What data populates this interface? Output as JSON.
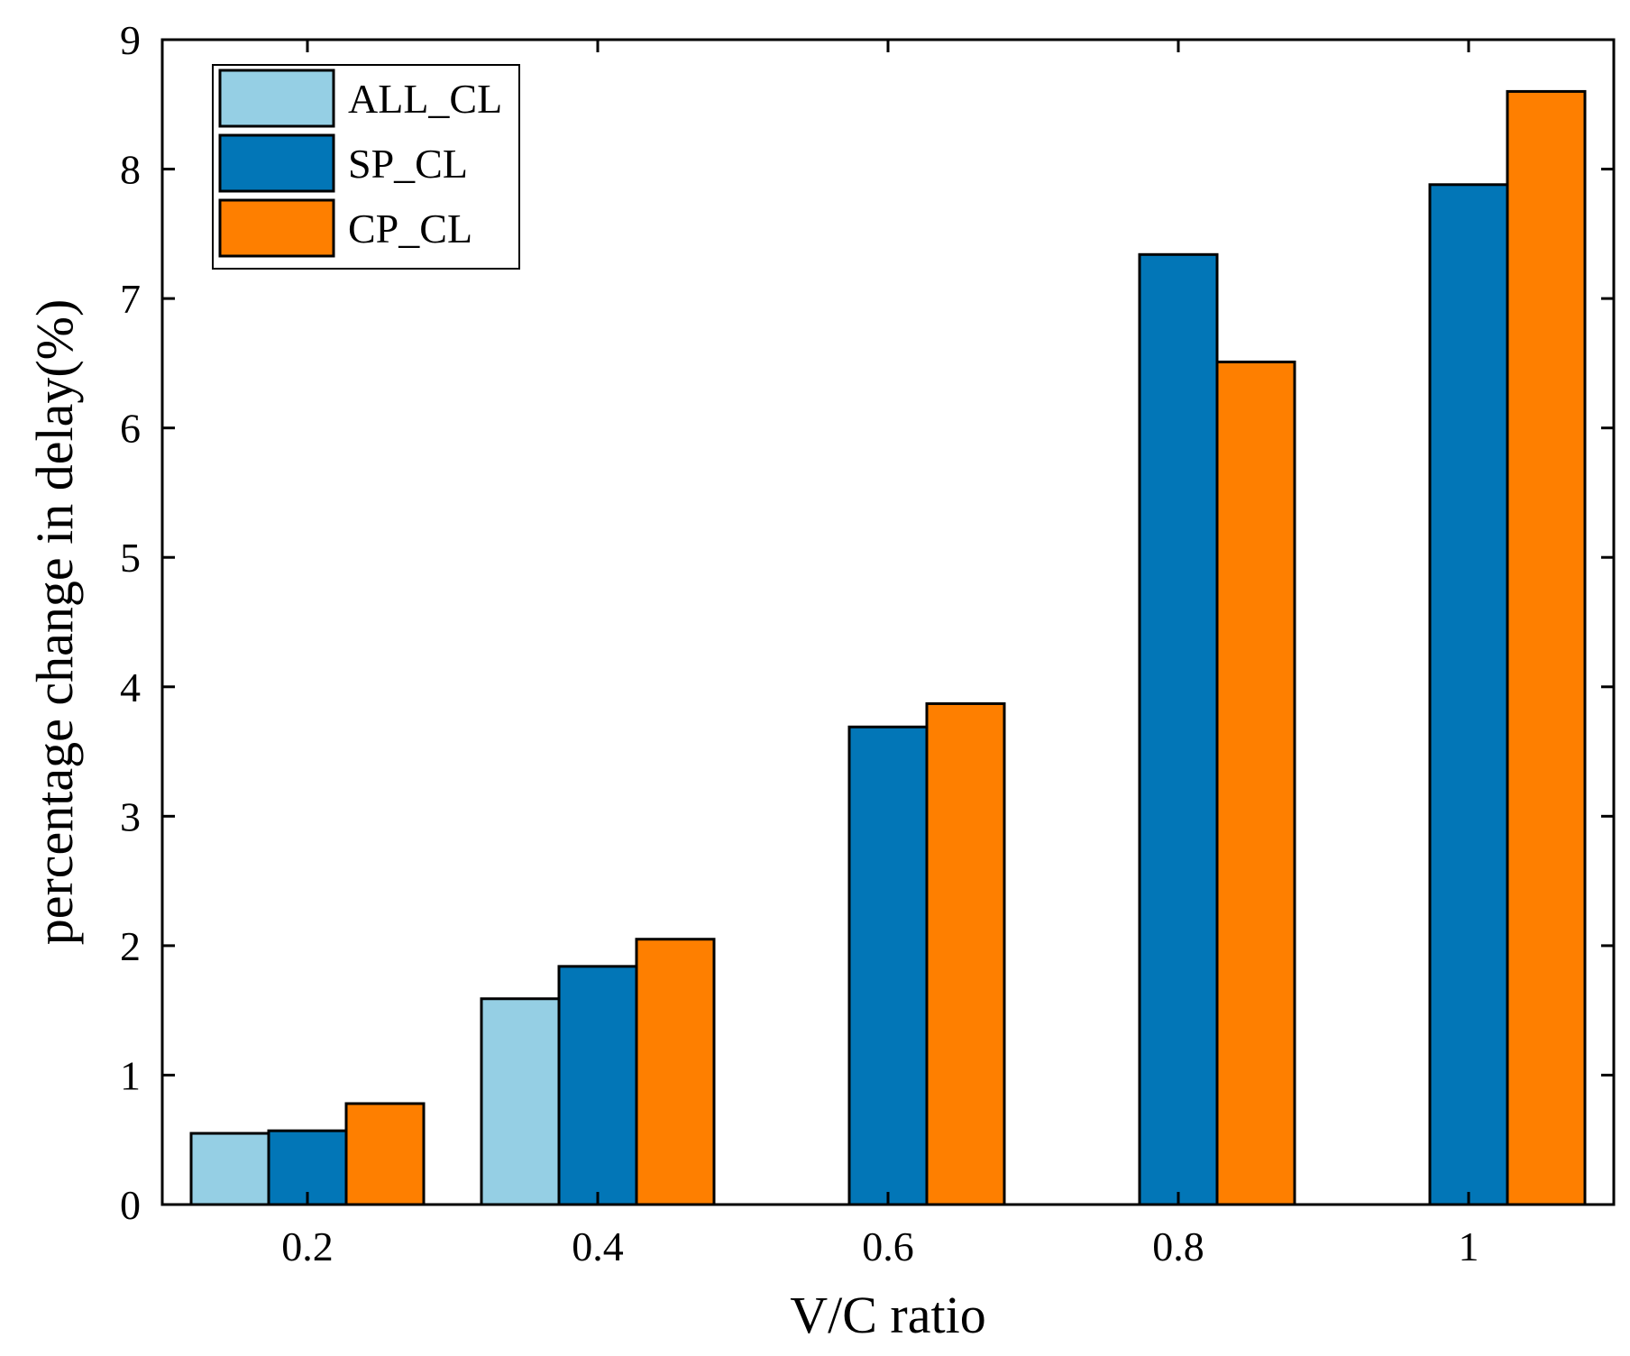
{
  "chart_data": {
    "type": "bar",
    "title": "",
    "xlabel": "V/C ratio",
    "ylabel": "percentage change in delay(%)",
    "categories": [
      "0.2",
      "0.4",
      "0.6",
      "0.8",
      "1"
    ],
    "ylim": [
      0,
      9
    ],
    "yticks": [
      "0",
      "1",
      "2",
      "3",
      "4",
      "5",
      "6",
      "7",
      "8",
      "9"
    ],
    "legend_position": "top-left",
    "series": [
      {
        "name": "ALL_CL",
        "color": "#95CFE4",
        "values": [
          0.55,
          1.59,
          0,
          0,
          0
        ]
      },
      {
        "name": "SP_CL",
        "color": "#0276B7",
        "values": [
          0.57,
          1.84,
          3.69,
          7.34,
          7.88
        ]
      },
      {
        "name": "CP_CL",
        "color": "#FE7F00",
        "values": [
          0.78,
          2.05,
          3.87,
          6.51,
          8.6
        ]
      }
    ]
  }
}
